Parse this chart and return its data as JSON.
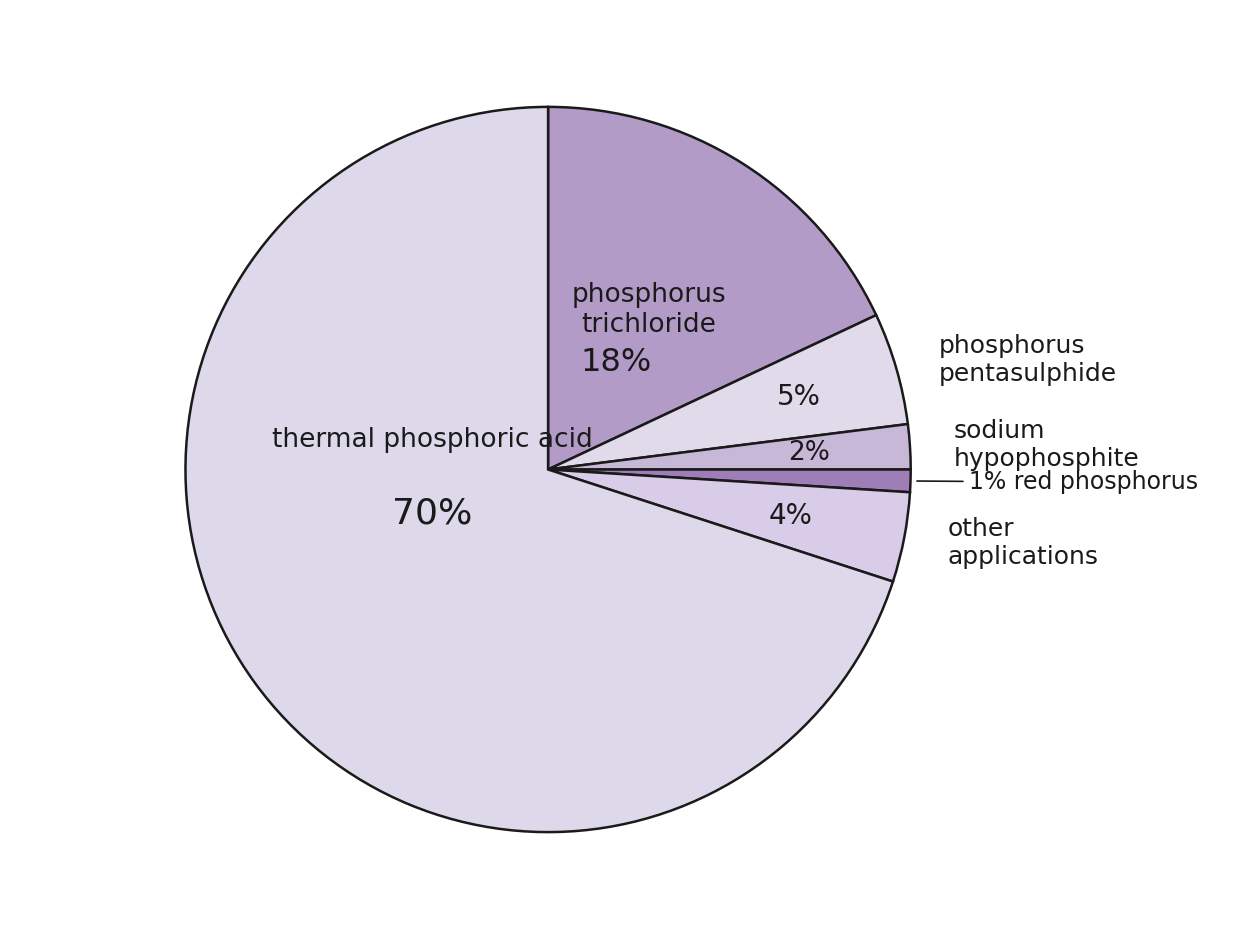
{
  "slices": [
    {
      "label": "phosphorus\ntrichloride",
      "pct": 18,
      "color": "#b39bc8",
      "pct_str": "18%"
    },
    {
      "label": "phosphorus\npentasulphide",
      "pct": 5,
      "color": "#e0daea",
      "pct_str": "5%"
    },
    {
      "label": "sodium\nhypophosphite",
      "pct": 2,
      "color": "#c8b8d8",
      "pct_str": "2%"
    },
    {
      "label": "red phosphorus",
      "pct": 1,
      "color": "#9f7eb8",
      "pct_str": "1%"
    },
    {
      "label": "other\napplications",
      "pct": 4,
      "color": "#d8cce8",
      "pct_str": "4%"
    },
    {
      "label": "thermal phosphoric acid",
      "pct": 70,
      "color": "#ddd8ea",
      "pct_str": "70%"
    }
  ],
  "edge_color": "#1a1a1a",
  "line_width": 1.8,
  "background_color": "#ffffff",
  "font_color": "#1a1a1a"
}
